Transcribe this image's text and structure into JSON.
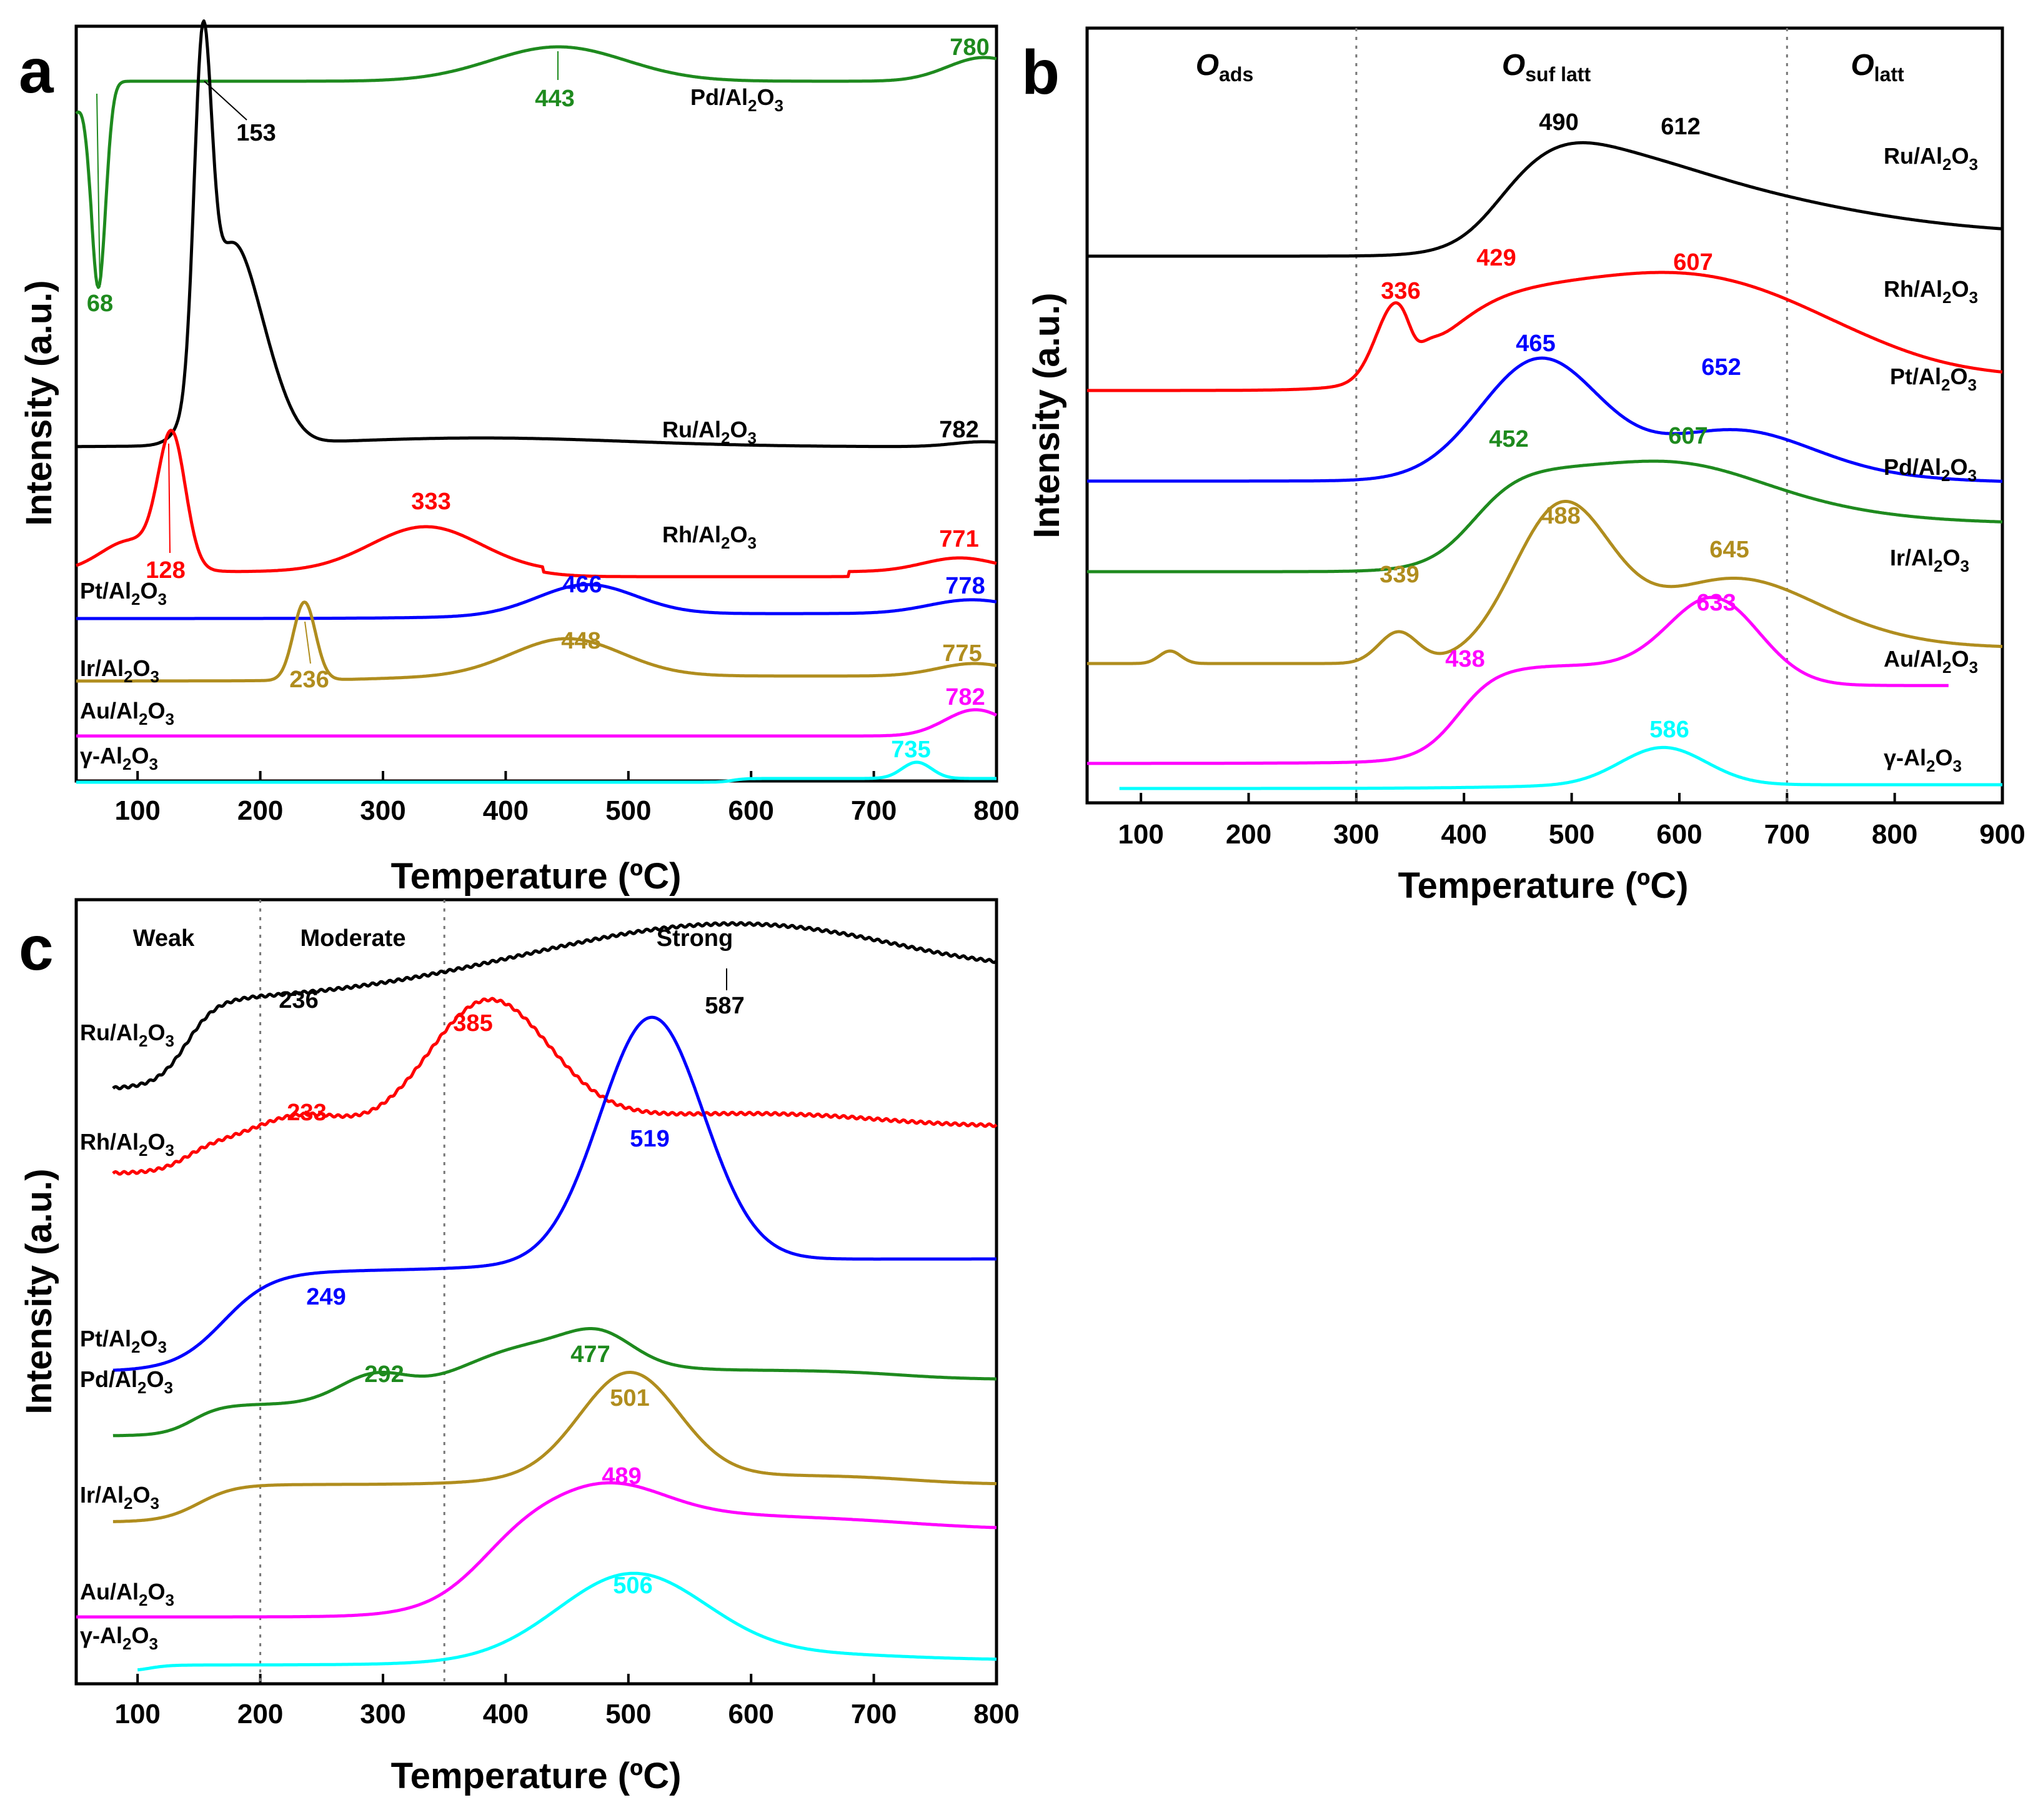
{
  "chart_data": [
    {
      "panel": "a",
      "type": "line",
      "xlabel": "Temperature (ºC)",
      "ylabel": "Intensity (a.u.)",
      "xlim": [
        50,
        800
      ],
      "xticks": [
        100,
        200,
        300,
        400,
        500,
        600,
        700,
        800
      ],
      "series": [
        {
          "name": "Pd/Al2O3",
          "label_main": "Pd/Al",
          "sub1": "2",
          "mid": "O",
          "sub2": "3",
          "color": "#1e8a1e",
          "peaks": [
            "68",
            "443",
            "780"
          ]
        },
        {
          "name": "Ru/Al2O3",
          "label_main": "Ru/Al",
          "sub1": "2",
          "mid": "O",
          "sub2": "3",
          "color": "#000000",
          "peaks": [
            "153",
            "782"
          ]
        },
        {
          "name": "Rh/Al2O3",
          "label_main": "Rh/Al",
          "sub1": "2",
          "mid": "O",
          "sub2": "3",
          "color": "#ff0000",
          "peaks": [
            "128",
            "333",
            "771"
          ]
        },
        {
          "name": "Pt/Al2O3",
          "label_main": "Pt/Al",
          "sub1": "2",
          "mid": "O",
          "sub2": "3",
          "color": "#0000ff",
          "peaks": [
            "466",
            "778"
          ]
        },
        {
          "name": "Ir/Al2O3",
          "label_main": "Ir/Al",
          "sub1": "2",
          "mid": "O",
          "sub2": "3",
          "color": "#b08d1e",
          "peaks": [
            "236",
            "448",
            "775"
          ]
        },
        {
          "name": "Au/Al2O3",
          "label_main": "Au/Al",
          "sub1": "2",
          "mid": "O",
          "sub2": "3",
          "color": "#ff00ff",
          "peaks": [
            "782"
          ]
        },
        {
          "name": "γ-Al2O3",
          "label_main": "γ-Al",
          "sub1": "2",
          "mid": "O",
          "sub2": "3",
          "color": "#00ffff",
          "peaks": [
            "735"
          ]
        }
      ]
    },
    {
      "panel": "b",
      "type": "line",
      "xlabel": "Temperature (ºC)",
      "ylabel": "Intensity (a.u.)",
      "xlim": [
        50,
        900
      ],
      "xticks": [
        100,
        200,
        300,
        400,
        500,
        600,
        700,
        800,
        900
      ],
      "regions": [
        {
          "main": "O",
          "sub": "ads"
        },
        {
          "main": "O",
          "sub": "suf latt"
        },
        {
          "main": "O",
          "sub": "latt"
        }
      ],
      "dividers": [
        300,
        700
      ],
      "series": [
        {
          "name": "Ru/Al2O3",
          "label_main": "Ru/Al",
          "sub1": "2",
          "mid": "O",
          "sub2": "3",
          "color": "#000000",
          "peaks": [
            "490",
            "612"
          ]
        },
        {
          "name": "Rh/Al2O3",
          "label_main": "Rh/Al",
          "sub1": "2",
          "mid": "O",
          "sub2": "3",
          "color": "#ff0000",
          "peaks": [
            "336",
            "429",
            "607"
          ]
        },
        {
          "name": "Pt/Al2O3",
          "label_main": "Pt/Al",
          "sub1": "2",
          "mid": "O",
          "sub2": "3",
          "color": "#0000ff",
          "peaks": [
            "465",
            "652"
          ]
        },
        {
          "name": "Pd/Al2O3",
          "label_main": "Pd/Al",
          "sub1": "2",
          "mid": "O",
          "sub2": "3",
          "color": "#1e8a1e",
          "peaks": [
            "452",
            "607"
          ]
        },
        {
          "name": "Ir/Al2O3",
          "label_main": "Ir/Al",
          "sub1": "2",
          "mid": "O",
          "sub2": "3",
          "color": "#b08d1e",
          "peaks": [
            "488",
            "339",
            "645"
          ]
        },
        {
          "name": "Au/Al2O3",
          "label_main": "Au/Al",
          "sub1": "2",
          "mid": "O",
          "sub2": "3",
          "color": "#ff00ff",
          "peaks": [
            "633",
            "438"
          ]
        },
        {
          "name": "γ-Al2O3",
          "label_main": "γ-Al",
          "sub1": "2",
          "mid": "O",
          "sub2": "3",
          "color": "#00ffff",
          "peaks": [
            "586"
          ]
        }
      ]
    },
    {
      "panel": "c",
      "type": "line",
      "xlabel": "Temperature (ºC)",
      "ylabel": "Intensity (a.u.)",
      "xlim": [
        50,
        800
      ],
      "xticks": [
        100,
        200,
        300,
        400,
        500,
        600,
        700,
        800
      ],
      "regions": [
        {
          "main": "Weak"
        },
        {
          "main": "Moderate"
        },
        {
          "main": "Strong"
        }
      ],
      "dividers": [
        200,
        350
      ],
      "series": [
        {
          "name": "Ru/Al2O3",
          "label_main": "Ru/Al",
          "sub1": "2",
          "mid": "O",
          "sub2": "3",
          "color": "#000000",
          "peaks": [
            "236",
            "587"
          ]
        },
        {
          "name": "Rh/Al2O3",
          "label_main": "Rh/Al",
          "sub1": "2",
          "mid": "O",
          "sub2": "3",
          "color": "#ff0000",
          "peaks": [
            "385",
            "233"
          ]
        },
        {
          "name": "Pt/Al2O3",
          "label_main": "Pt/Al",
          "sub1": "2",
          "mid": "O",
          "sub2": "3",
          "color": "#0000ff",
          "peaks": [
            "519",
            "249"
          ]
        },
        {
          "name": "Pd/Al2O3",
          "label_main": "Pd/Al",
          "sub1": "2",
          "mid": "O",
          "sub2": "3",
          "color": "#1e8a1e",
          "peaks": [
            "477",
            "292"
          ]
        },
        {
          "name": "Ir/Al2O3",
          "label_main": "Ir/Al",
          "sub1": "2",
          "mid": "O",
          "sub2": "3",
          "color": "#b08d1e",
          "peaks": [
            "501"
          ]
        },
        {
          "name": "Au/Al2O3",
          "label_main": "Au/Al",
          "sub1": "2",
          "mid": "O",
          "sub2": "3",
          "color": "#ff00ff",
          "peaks": [
            "489"
          ]
        },
        {
          "name": "γ-Al2O3",
          "label_main": "γ-Al",
          "sub1": "2",
          "mid": "O",
          "sub2": "3",
          "color": "#00ffff",
          "peaks": [
            "506"
          ]
        }
      ]
    }
  ],
  "panel_letters": [
    "a",
    "b",
    "c"
  ]
}
